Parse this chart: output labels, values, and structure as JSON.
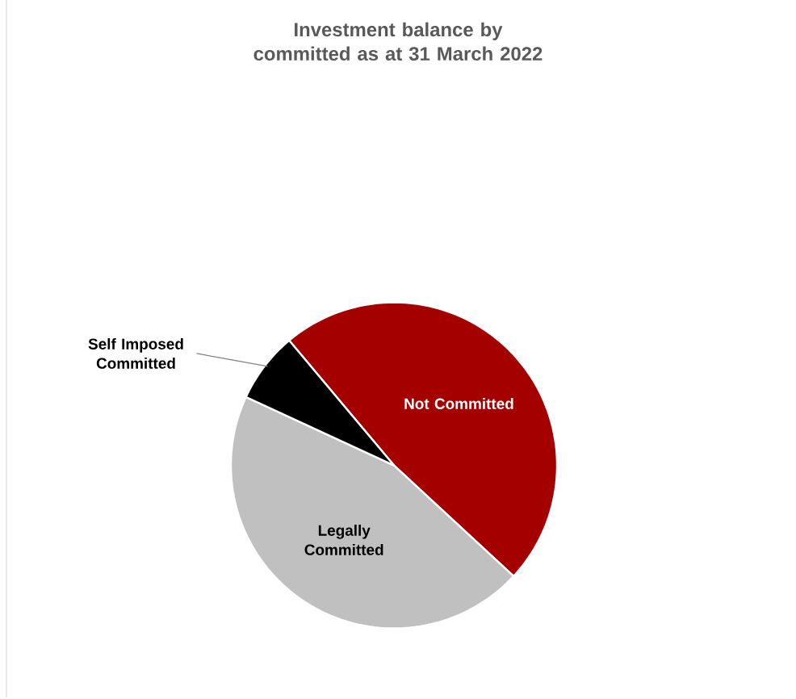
{
  "chart_data": {
    "type": "pie",
    "title": "Investment balance by committed as at 31 March 2022",
    "categories": [
      "Not Committed",
      "Legally Committed",
      "Self Imposed Committed"
    ],
    "values": [
      48,
      45,
      7
    ],
    "colors": [
      "#a50000",
      "#c0c0c0",
      "#000000"
    ]
  }
}
